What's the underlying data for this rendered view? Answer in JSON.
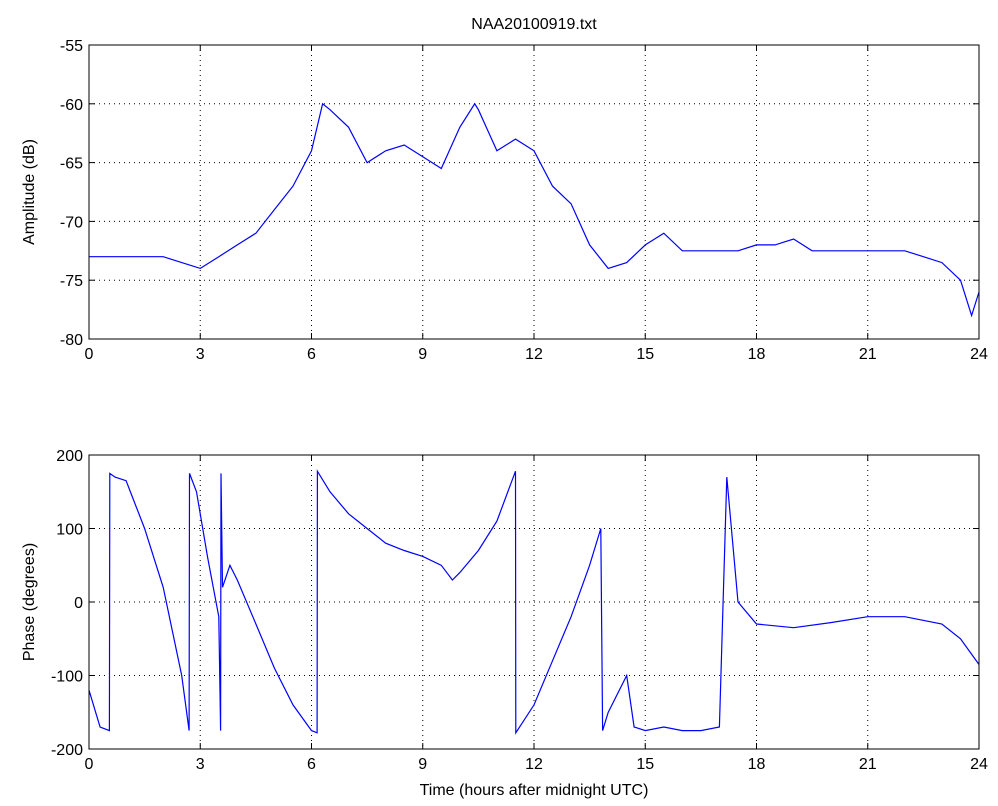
{
  "chart_data": [
    {
      "type": "line",
      "title": "NAA20100919.txt",
      "y_label": "Amplitude (dB)",
      "x": [
        0,
        0.5,
        1,
        1.5,
        2,
        2.5,
        3,
        3.5,
        4,
        4.5,
        5,
        5.5,
        6,
        6.3,
        6.5,
        7,
        7.5,
        8,
        8.5,
        9,
        9.5,
        10,
        10.4,
        10.5,
        11,
        11.5,
        12,
        12.5,
        13,
        13.5,
        14,
        14.5,
        15,
        15.5,
        16,
        16.5,
        17,
        17.5,
        18,
        18.5,
        19,
        19.5,
        20,
        20.5,
        21,
        21.5,
        22,
        22.5,
        23,
        23.5,
        23.8,
        24
      ],
      "series": [
        {
          "name": "Amplitude",
          "color": "#0000ff",
          "values": [
            -73,
            -73,
            -73,
            -73,
            -73,
            -73.5,
            -74,
            -73,
            -72,
            -71,
            -69,
            -67,
            -64,
            -60,
            -60.5,
            -62,
            -65,
            -64,
            -63.5,
            -64.5,
            -65.5,
            -62,
            -60,
            -60.5,
            -64,
            -63,
            -64,
            -67,
            -68.5,
            -72,
            -74,
            -73.5,
            -72,
            -71,
            -72.5,
            -72.5,
            -72.5,
            -72.5,
            -72,
            -72,
            -71.5,
            -72.5,
            -72.5,
            -72.5,
            -72.5,
            -72.5,
            -72.5,
            -73,
            -73.5,
            -75,
            -78,
            -76
          ]
        }
      ],
      "xlim": [
        0,
        24
      ],
      "xticks": [
        0,
        3,
        6,
        9,
        12,
        15,
        18,
        21,
        24
      ],
      "ylim": [
        -80,
        -55
      ],
      "yticks": [
        -80,
        -75,
        -70,
        -65,
        -60,
        -55
      ],
      "grid": true
    },
    {
      "type": "line",
      "x_label": "Time (hours after midnight UTC)",
      "y_label": "Phase (degrees)",
      "x": [
        0,
        0.3,
        0.55,
        0.56,
        0.7,
        1,
        1.5,
        2,
        2.5,
        2.7,
        2.71,
        2.9,
        3.2,
        3.5,
        3.55,
        3.56,
        3.6,
        3.8,
        4,
        4.5,
        5,
        5.5,
        6,
        6.15,
        6.16,
        6.5,
        7,
        7.5,
        8,
        8.5,
        9,
        9.5,
        9.8,
        10,
        10.5,
        11,
        11.5,
        11.51,
        12,
        12.5,
        13,
        13.5,
        13.8,
        13.85,
        14,
        14.5,
        14.7,
        15,
        15.5,
        16,
        16.5,
        17,
        17.2,
        17.5,
        18,
        19,
        20,
        21,
        22,
        23,
        23.5,
        24
      ],
      "series": [
        {
          "name": "Phase",
          "color": "#0000ff",
          "values": [
            -120,
            -170,
            -175,
            175,
            170,
            165,
            100,
            20,
            -100,
            -175,
            175,
            150,
            60,
            -20,
            -175,
            175,
            20,
            50,
            30,
            -30,
            -90,
            -140,
            -175,
            -178,
            178,
            150,
            120,
            100,
            80,
            70,
            62,
            50,
            30,
            40,
            70,
            110,
            178,
            -178,
            -140,
            -80,
            -20,
            50,
            100,
            -175,
            -150,
            -100,
            -170,
            -175,
            -170,
            -175,
            -175,
            -170,
            170,
            0,
            -30,
            -35,
            -28,
            -20,
            -20,
            -30,
            -50,
            -85
          ]
        }
      ],
      "xlim": [
        0,
        24
      ],
      "xticks": [
        0,
        3,
        6,
        9,
        12,
        15,
        18,
        21,
        24
      ],
      "ylim": [
        -200,
        200
      ],
      "yticks": [
        -200,
        -100,
        0,
        100,
        200
      ],
      "grid": true
    }
  ]
}
